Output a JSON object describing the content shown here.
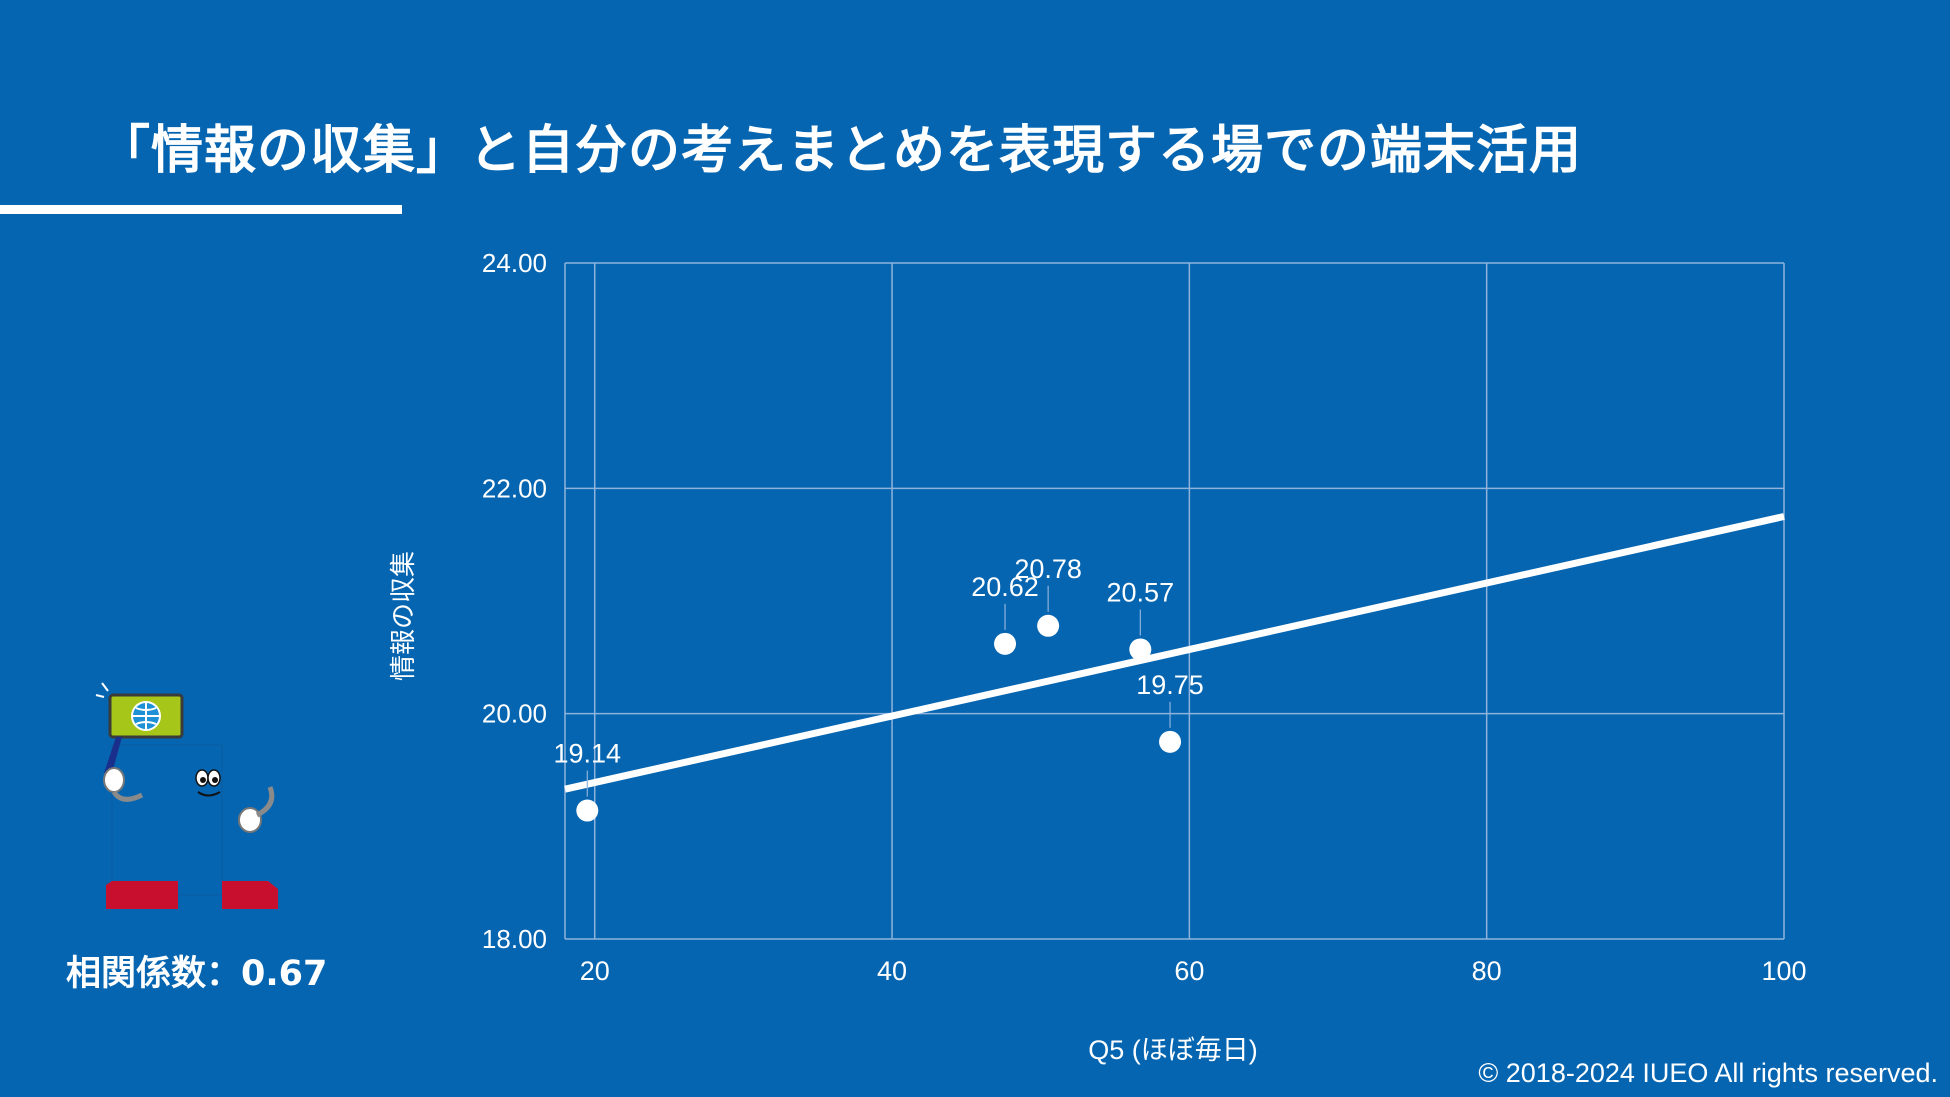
{
  "slide": {
    "title": "「情報の収集」と自分の考えまとめを表現する場での端末活用",
    "correlation_text": "相関係数：0.67",
    "copyright": "© 2018-2024 IUEO All rights reserved."
  },
  "colors": {
    "background": "#0565b1",
    "foreground": "#ffffff",
    "grid": "#8fb3db",
    "mascot_body": "#0565b1",
    "mascot_sign": "#a7c61a",
    "mascot_shoes": "#c8102e"
  },
  "mascot": {
    "icon": "mascot-character-with-globe-sign"
  },
  "chart_data": {
    "type": "scatter",
    "xlabel": "Q5 (ほぼ毎日)",
    "ylabel": "情報の収集",
    "xlim": [
      18,
      100
    ],
    "ylim": [
      18,
      24
    ],
    "x_ticks": [
      "20",
      "40",
      "60",
      "80",
      "100"
    ],
    "x_tick_values": [
      20,
      40,
      60,
      80,
      100
    ],
    "y_ticks": [
      "24.00",
      "22.00",
      "20.00",
      "18.00"
    ],
    "y_tick_values": [
      24,
      22,
      20,
      18
    ],
    "grid": true,
    "points": [
      {
        "x": 19.5,
        "y": 19.14,
        "label": "19.14"
      },
      {
        "x": 47.6,
        "y": 20.62,
        "label": "20.62"
      },
      {
        "x": 50.5,
        "y": 20.78,
        "label": "20.78"
      },
      {
        "x": 56.7,
        "y": 20.57,
        "label": "20.57"
      },
      {
        "x": 58.7,
        "y": 19.75,
        "label": "19.75"
      }
    ],
    "trendline": {
      "type": "linear",
      "start": {
        "x": 18,
        "y": 19.33
      },
      "end": {
        "x": 100,
        "y": 21.75
      }
    }
  }
}
